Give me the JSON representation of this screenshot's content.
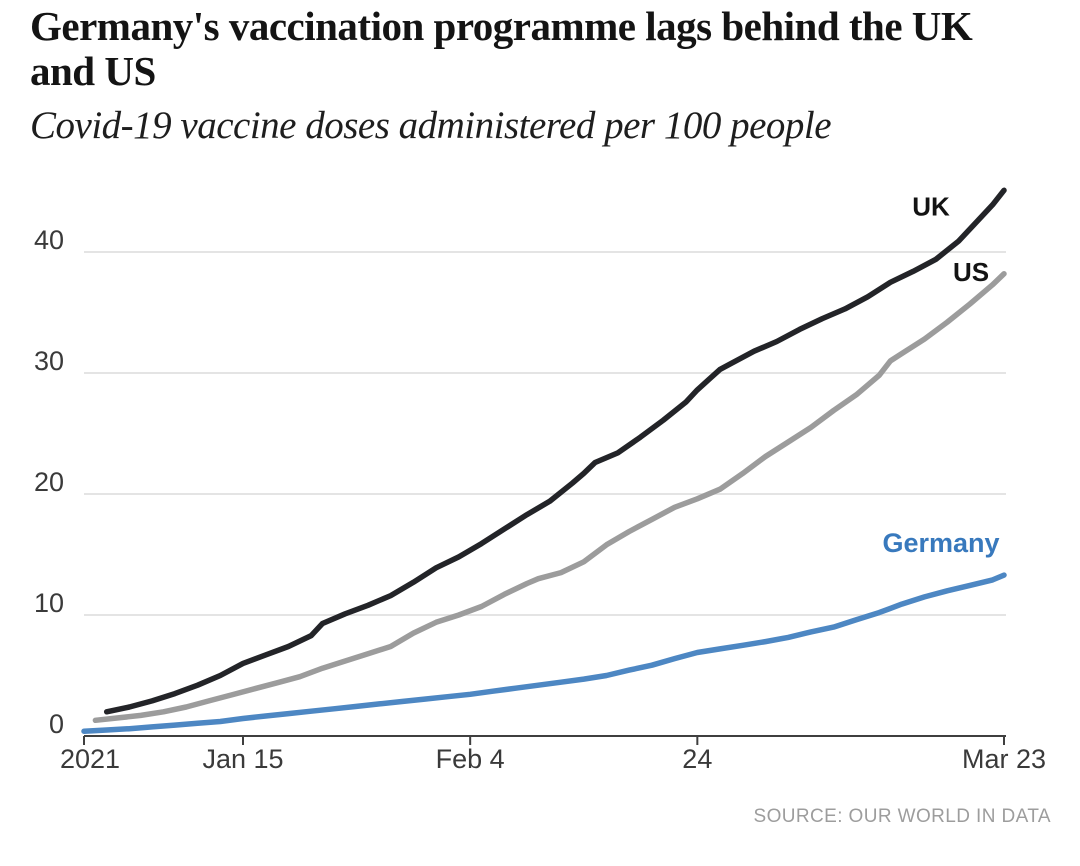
{
  "header": {
    "title_lines": [
      "Germany's vaccination programme lags behind the UK",
      "and US"
    ],
    "subtitle": "Covid-19 vaccine doses administered per 100 people"
  },
  "footer": {
    "source": "SOURCE: OUR WORLD IN DATA"
  },
  "chart_data": {
    "type": "line",
    "title": "Germany's vaccination programme lags behind the UK and US",
    "subtitle": "Covid-19 vaccine doses administered per 100 people",
    "source": "SOURCE: OUR WORLD IN DATA",
    "grid": true,
    "legend_position": "end-of-line labels",
    "x_axis": {
      "unit": "days since 1 Jan 2021",
      "range_days": [
        0,
        81
      ],
      "ticks": [
        {
          "label": "2021",
          "day": 0
        },
        {
          "label": "Jan 15",
          "day": 14
        },
        {
          "label": "Feb 4",
          "day": 34
        },
        {
          "label": "24",
          "day": 54
        },
        {
          "label": "Mar 23",
          "day": 81
        }
      ]
    },
    "y_axis": {
      "label": "Covid-19 vaccine doses administered per 100 people",
      "ticks": [
        0,
        10,
        20,
        30,
        40
      ],
      "ylim": [
        0,
        47
      ]
    },
    "series": [
      {
        "name": "UK",
        "color": "#232428",
        "label_color": "#131313",
        "points": [
          [
            2,
            2.0
          ],
          [
            4,
            2.4
          ],
          [
            6,
            2.9
          ],
          [
            8,
            3.5
          ],
          [
            10,
            4.2
          ],
          [
            12,
            5.0
          ],
          [
            14,
            6.0
          ],
          [
            16,
            6.7
          ],
          [
            18,
            7.4
          ],
          [
            20,
            8.3
          ],
          [
            21,
            9.3
          ],
          [
            23,
            10.1
          ],
          [
            25,
            10.8
          ],
          [
            27,
            11.6
          ],
          [
            29,
            12.7
          ],
          [
            31,
            13.9
          ],
          [
            33,
            14.8
          ],
          [
            35,
            15.9
          ],
          [
            37,
            17.1
          ],
          [
            39,
            18.3
          ],
          [
            41,
            19.4
          ],
          [
            43,
            20.9
          ],
          [
            44,
            21.7
          ],
          [
            45,
            22.6
          ],
          [
            47,
            23.4
          ],
          [
            49,
            24.7
          ],
          [
            51,
            26.1
          ],
          [
            53,
            27.6
          ],
          [
            54,
            28.6
          ],
          [
            56,
            30.3
          ],
          [
            57,
            30.8
          ],
          [
            59,
            31.8
          ],
          [
            61,
            32.6
          ],
          [
            63,
            33.6
          ],
          [
            65,
            34.5
          ],
          [
            67,
            35.3
          ],
          [
            69,
            36.3
          ],
          [
            71,
            37.5
          ],
          [
            73,
            38.4
          ],
          [
            75,
            39.4
          ],
          [
            77,
            40.9
          ],
          [
            79,
            42.9
          ],
          [
            80,
            43.9
          ],
          [
            81,
            45.1
          ]
        ]
      },
      {
        "name": "US",
        "color": "#9c9c9c",
        "label_color": "#131313",
        "points": [
          [
            1,
            1.3
          ],
          [
            3,
            1.5
          ],
          [
            5,
            1.7
          ],
          [
            7,
            2.0
          ],
          [
            9,
            2.4
          ],
          [
            11,
            2.9
          ],
          [
            13,
            3.4
          ],
          [
            15,
            3.9
          ],
          [
            17,
            4.4
          ],
          [
            19,
            4.9
          ],
          [
            21,
            5.6
          ],
          [
            23,
            6.2
          ],
          [
            25,
            6.8
          ],
          [
            27,
            7.4
          ],
          [
            29,
            8.5
          ],
          [
            31,
            9.4
          ],
          [
            33,
            10.0
          ],
          [
            35,
            10.7
          ],
          [
            37,
            11.7
          ],
          [
            39,
            12.6
          ],
          [
            40,
            13.0
          ],
          [
            42,
            13.5
          ],
          [
            44,
            14.4
          ],
          [
            46,
            15.8
          ],
          [
            48,
            16.9
          ],
          [
            50,
            17.9
          ],
          [
            52,
            18.9
          ],
          [
            54,
            19.6
          ],
          [
            56,
            20.4
          ],
          [
            58,
            21.7
          ],
          [
            60,
            23.1
          ],
          [
            62,
            24.3
          ],
          [
            64,
            25.5
          ],
          [
            66,
            26.9
          ],
          [
            68,
            28.2
          ],
          [
            70,
            29.8
          ],
          [
            71,
            31.0
          ],
          [
            72,
            31.6
          ],
          [
            74,
            32.8
          ],
          [
            76,
            34.2
          ],
          [
            78,
            35.7
          ],
          [
            80,
            37.3
          ],
          [
            81,
            38.2
          ]
        ]
      },
      {
        "name": "Germany",
        "color": "#4d87c3",
        "label_color": "#3879bd",
        "points": [
          [
            0,
            0.4
          ],
          [
            2,
            0.5
          ],
          [
            4,
            0.6
          ],
          [
            6,
            0.75
          ],
          [
            8,
            0.9
          ],
          [
            10,
            1.05
          ],
          [
            12,
            1.2
          ],
          [
            14,
            1.45
          ],
          [
            16,
            1.65
          ],
          [
            18,
            1.85
          ],
          [
            20,
            2.05
          ],
          [
            22,
            2.25
          ],
          [
            24,
            2.45
          ],
          [
            26,
            2.65
          ],
          [
            28,
            2.85
          ],
          [
            30,
            3.05
          ],
          [
            32,
            3.25
          ],
          [
            34,
            3.45
          ],
          [
            36,
            3.7
          ],
          [
            38,
            3.95
          ],
          [
            40,
            4.2
          ],
          [
            42,
            4.45
          ],
          [
            44,
            4.7
          ],
          [
            46,
            5.0
          ],
          [
            48,
            5.45
          ],
          [
            50,
            5.85
          ],
          [
            52,
            6.4
          ],
          [
            54,
            6.9
          ],
          [
            56,
            7.2
          ],
          [
            58,
            7.5
          ],
          [
            60,
            7.8
          ],
          [
            62,
            8.15
          ],
          [
            64,
            8.6
          ],
          [
            66,
            9.0
          ],
          [
            68,
            9.6
          ],
          [
            70,
            10.2
          ],
          [
            72,
            10.9
          ],
          [
            74,
            11.5
          ],
          [
            76,
            12.0
          ],
          [
            78,
            12.45
          ],
          [
            80,
            12.9
          ],
          [
            81,
            13.3
          ]
        ]
      }
    ]
  }
}
